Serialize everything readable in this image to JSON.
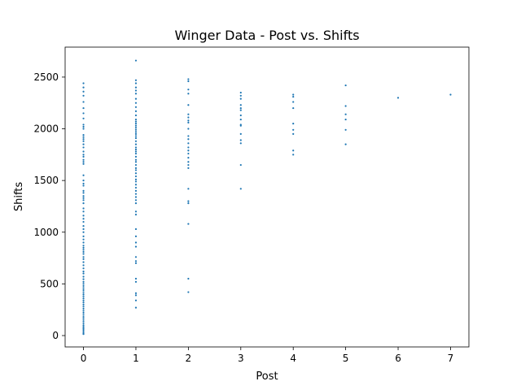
{
  "chart_data": {
    "type": "scatter",
    "title": "Winger Data - Post vs. Shifts",
    "xlabel": "Post",
    "ylabel": "Shifts",
    "xlim": [
      -0.35,
      7.35
    ],
    "ylim": [
      -110,
      2790
    ],
    "x_ticks": [
      0,
      1,
      2,
      3,
      4,
      5,
      6,
      7
    ],
    "y_ticks": [
      0,
      500,
      1000,
      1500,
      2000,
      2500
    ],
    "grid": false,
    "legend": "none",
    "marker_color": "#1f77b4",
    "series": [
      {
        "points": [
          [
            0,
            2440
          ],
          [
            0,
            2400
          ],
          [
            0,
            2360
          ],
          [
            0,
            2320
          ],
          [
            0,
            2260
          ],
          [
            0,
            2200
          ],
          [
            0,
            2150
          ],
          [
            0,
            2100
          ],
          [
            0,
            2040
          ],
          [
            0,
            2020
          ],
          [
            0,
            2000
          ],
          [
            0,
            1940
          ],
          [
            0,
            1920
          ],
          [
            0,
            1900
          ],
          [
            0,
            1880
          ],
          [
            0,
            1850
          ],
          [
            0,
            1820
          ],
          [
            0,
            1780
          ],
          [
            0,
            1750
          ],
          [
            0,
            1730
          ],
          [
            0,
            1700
          ],
          [
            0,
            1680
          ],
          [
            0,
            1660
          ],
          [
            0,
            1550
          ],
          [
            0,
            1500
          ],
          [
            0,
            1470
          ],
          [
            0,
            1450
          ],
          [
            0,
            1400
          ],
          [
            0,
            1380
          ],
          [
            0,
            1350
          ],
          [
            0,
            1330
          ],
          [
            0,
            1310
          ],
          [
            0,
            1280
          ],
          [
            0,
            1230
          ],
          [
            0,
            1200
          ],
          [
            0,
            1160
          ],
          [
            0,
            1130
          ],
          [
            0,
            1100
          ],
          [
            0,
            1060
          ],
          [
            0,
            1030
          ],
          [
            0,
            1000
          ],
          [
            0,
            960
          ],
          [
            0,
            930
          ],
          [
            0,
            900
          ],
          [
            0,
            870
          ],
          [
            0,
            850
          ],
          [
            0,
            830
          ],
          [
            0,
            810
          ],
          [
            0,
            790
          ],
          [
            0,
            760
          ],
          [
            0,
            740
          ],
          [
            0,
            710
          ],
          [
            0,
            680
          ],
          [
            0,
            650
          ],
          [
            0,
            620
          ],
          [
            0,
            600
          ],
          [
            0,
            570
          ],
          [
            0,
            545
          ],
          [
            0,
            520
          ],
          [
            0,
            500
          ],
          [
            0,
            480
          ],
          [
            0,
            460
          ],
          [
            0,
            440
          ],
          [
            0,
            420
          ],
          [
            0,
            400
          ],
          [
            0,
            380
          ],
          [
            0,
            360
          ],
          [
            0,
            340
          ],
          [
            0,
            320
          ],
          [
            0,
            300
          ],
          [
            0,
            280
          ],
          [
            0,
            260
          ],
          [
            0,
            240
          ],
          [
            0,
            220
          ],
          [
            0,
            200
          ],
          [
            0,
            180
          ],
          [
            0,
            160
          ],
          [
            0,
            140
          ],
          [
            0,
            120
          ],
          [
            0,
            100
          ],
          [
            0,
            85
          ],
          [
            0,
            70
          ],
          [
            0,
            55
          ],
          [
            0,
            40
          ],
          [
            0,
            25
          ],
          [
            0,
            15
          ],
          [
            1,
            2660
          ],
          [
            1,
            2470
          ],
          [
            1,
            2440
          ],
          [
            1,
            2400
          ],
          [
            1,
            2370
          ],
          [
            1,
            2340
          ],
          [
            1,
            2290
          ],
          [
            1,
            2250
          ],
          [
            1,
            2210
          ],
          [
            1,
            2170
          ],
          [
            1,
            2130
          ],
          [
            1,
            2090
          ],
          [
            1,
            2070
          ],
          [
            1,
            2050
          ],
          [
            1,
            2030
          ],
          [
            1,
            2010
          ],
          [
            1,
            1990
          ],
          [
            1,
            1970
          ],
          [
            1,
            1950
          ],
          [
            1,
            1930
          ],
          [
            1,
            1910
          ],
          [
            1,
            1880
          ],
          [
            1,
            1850
          ],
          [
            1,
            1820
          ],
          [
            1,
            1800
          ],
          [
            1,
            1780
          ],
          [
            1,
            1760
          ],
          [
            1,
            1730
          ],
          [
            1,
            1700
          ],
          [
            1,
            1680
          ],
          [
            1,
            1650
          ],
          [
            1,
            1620
          ],
          [
            1,
            1600
          ],
          [
            1,
            1570
          ],
          [
            1,
            1540
          ],
          [
            1,
            1510
          ],
          [
            1,
            1490
          ],
          [
            1,
            1460
          ],
          [
            1,
            1430
          ],
          [
            1,
            1400
          ],
          [
            1,
            1370
          ],
          [
            1,
            1340
          ],
          [
            1,
            1310
          ],
          [
            1,
            1280
          ],
          [
            1,
            1200
          ],
          [
            1,
            1170
          ],
          [
            1,
            1030
          ],
          [
            1,
            960
          ],
          [
            1,
            900
          ],
          [
            1,
            860
          ],
          [
            1,
            760
          ],
          [
            1,
            720
          ],
          [
            1,
            700
          ],
          [
            1,
            550
          ],
          [
            1,
            520
          ],
          [
            1,
            410
          ],
          [
            1,
            390
          ],
          [
            1,
            340
          ],
          [
            1,
            270
          ],
          [
            2,
            2480
          ],
          [
            2,
            2460
          ],
          [
            2,
            2380
          ],
          [
            2,
            2340
          ],
          [
            2,
            2230
          ],
          [
            2,
            2140
          ],
          [
            2,
            2110
          ],
          [
            2,
            2080
          ],
          [
            2,
            2060
          ],
          [
            2,
            2000
          ],
          [
            2,
            1930
          ],
          [
            2,
            1900
          ],
          [
            2,
            1860
          ],
          [
            2,
            1820
          ],
          [
            2,
            1790
          ],
          [
            2,
            1760
          ],
          [
            2,
            1720
          ],
          [
            2,
            1680
          ],
          [
            2,
            1650
          ],
          [
            2,
            1620
          ],
          [
            2,
            1420
          ],
          [
            2,
            1300
          ],
          [
            2,
            1280
          ],
          [
            2,
            1080
          ],
          [
            2,
            550
          ],
          [
            2,
            420
          ],
          [
            3,
            2350
          ],
          [
            3,
            2320
          ],
          [
            3,
            2290
          ],
          [
            3,
            2230
          ],
          [
            3,
            2200
          ],
          [
            3,
            2180
          ],
          [
            3,
            2130
          ],
          [
            3,
            2090
          ],
          [
            3,
            2040
          ],
          [
            3,
            2030
          ],
          [
            3,
            1950
          ],
          [
            3,
            1890
          ],
          [
            3,
            1860
          ],
          [
            3,
            1650
          ],
          [
            3,
            1420
          ],
          [
            4,
            2330
          ],
          [
            4,
            2310
          ],
          [
            4,
            2260
          ],
          [
            4,
            2200
          ],
          [
            4,
            2050
          ],
          [
            4,
            1990
          ],
          [
            4,
            1950
          ],
          [
            4,
            1790
          ],
          [
            4,
            1750
          ],
          [
            5,
            2420
          ],
          [
            5,
            2220
          ],
          [
            5,
            2140
          ],
          [
            5,
            2090
          ],
          [
            5,
            1990
          ],
          [
            5,
            1850
          ],
          [
            6,
            2300
          ],
          [
            7,
            2330
          ]
        ]
      }
    ]
  }
}
